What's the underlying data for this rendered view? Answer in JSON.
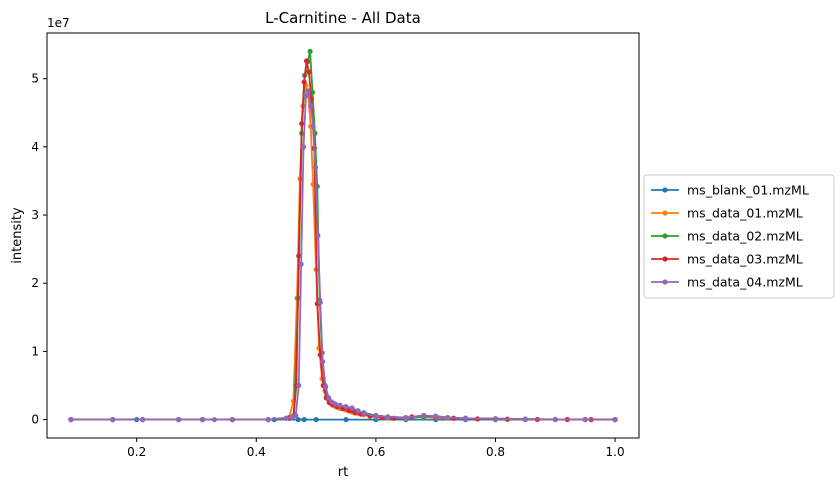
{
  "chart_data": {
    "type": "line",
    "title": "L-Carnitine - All Data",
    "xlabel": "rt",
    "ylabel": "intensity",
    "y_multiplier_label": "1e7",
    "xlim": [
      0.05,
      1.04
    ],
    "ylim": [
      -2700000,
      56700000
    ],
    "x_ticks": [
      0.2,
      0.4,
      0.6,
      0.8,
      1.0
    ],
    "x_tick_labels": [
      "0.2",
      "0.4",
      "0.6",
      "0.8",
      "1.0"
    ],
    "y_ticks": [
      0,
      10000000,
      20000000,
      30000000,
      40000000,
      50000000
    ],
    "y_tick_labels": [
      "0",
      "1",
      "2",
      "3",
      "4",
      "5"
    ],
    "grid": false,
    "legend_position": "outside-right",
    "series": [
      {
        "name": "ms_blank_01.mzML",
        "color": "#1f77b4",
        "x": [
          0.09,
          0.16,
          0.2,
          0.27,
          0.31,
          0.36,
          0.43,
          0.47,
          0.48,
          0.5,
          0.55,
          0.6,
          0.65,
          0.7,
          0.75,
          0.8,
          0.85,
          0.9,
          0.95,
          1.0
        ],
        "y": [
          0,
          0,
          0,
          0,
          0,
          0,
          0,
          0,
          0,
          0,
          0,
          0,
          0,
          0,
          0,
          0,
          0,
          0,
          0,
          0
        ]
      },
      {
        "name": "ms_data_01.mzML",
        "color": "#ff7f0e",
        "x": [
          0.09,
          0.16,
          0.21,
          0.27,
          0.31,
          0.36,
          0.42,
          0.455,
          0.462,
          0.468,
          0.473,
          0.478,
          0.483,
          0.487,
          0.491,
          0.495,
          0.5,
          0.505,
          0.51,
          0.515,
          0.52,
          0.525,
          0.53,
          0.535,
          0.54,
          0.55,
          0.56,
          0.57,
          0.58,
          0.6,
          0.62,
          0.65,
          0.68,
          0.7,
          0.72,
          0.75,
          0.8,
          0.85,
          0.9,
          0.95,
          1.0
        ],
        "y": [
          0,
          0,
          0,
          0,
          0,
          0,
          0,
          300000,
          2700000,
          17800000,
          35300000,
          46000000,
          49000000,
          47500000,
          43000000,
          34500000,
          22000000,
          10500000,
          6000000,
          4200000,
          3000000,
          2400000,
          2000000,
          1800000,
          1600000,
          1400000,
          1100000,
          900000,
          700000,
          400000,
          300000,
          200000,
          400000,
          300000,
          200000,
          150000,
          100000,
          50000,
          20000,
          10000,
          0
        ]
      },
      {
        "name": "ms_data_02.mzML",
        "color": "#2ca02c",
        "x": [
          0.09,
          0.16,
          0.21,
          0.27,
          0.31,
          0.36,
          0.42,
          0.455,
          0.463,
          0.47,
          0.476,
          0.481,
          0.486,
          0.49,
          0.494,
          0.498,
          0.502,
          0.506,
          0.51,
          0.515,
          0.52,
          0.525,
          0.53,
          0.54,
          0.55,
          0.56,
          0.57,
          0.58,
          0.6,
          0.62,
          0.65,
          0.68,
          0.7,
          0.72,
          0.75,
          0.8,
          0.85,
          0.9,
          0.95,
          1.0
        ],
        "y": [
          0,
          0,
          0,
          0,
          0,
          0,
          0,
          300000,
          600000,
          17800000,
          42000000,
          50500000,
          52500000,
          54000000,
          48000000,
          42000000,
          34200000,
          17500000,
          9800000,
          5000000,
          3200000,
          2600000,
          2300000,
          2000000,
          1800000,
          1500000,
          1200000,
          1000000,
          600000,
          400000,
          300000,
          400000,
          500000,
          300000,
          200000,
          150000,
          80000,
          30000,
          10000,
          0
        ]
      },
      {
        "name": "ms_data_03.mzML",
        "color": "#d62728",
        "x": [
          0.09,
          0.16,
          0.21,
          0.27,
          0.31,
          0.36,
          0.42,
          0.455,
          0.462,
          0.467,
          0.471,
          0.476,
          0.48,
          0.484,
          0.488,
          0.492,
          0.497,
          0.502,
          0.507,
          0.512,
          0.517,
          0.522,
          0.527,
          0.535,
          0.545,
          0.555,
          0.565,
          0.575,
          0.59,
          0.61,
          0.63,
          0.66,
          0.68,
          0.7,
          0.73,
          0.77,
          0.82,
          0.87,
          0.92,
          0.96,
          1.0
        ],
        "y": [
          0,
          0,
          0,
          0,
          0,
          0,
          0,
          200000,
          500000,
          5000000,
          24000000,
          43400000,
          49500000,
          52600000,
          51000000,
          47000000,
          39800000,
          17000000,
          9500000,
          5000000,
          3200000,
          2500000,
          2200000,
          1900000,
          1600000,
          1300000,
          1000000,
          800000,
          500000,
          300000,
          200000,
          400000,
          600000,
          400000,
          200000,
          100000,
          50000,
          20000,
          10000,
          0,
          0
        ]
      },
      {
        "name": "ms_data_04.mzML",
        "color": "#9467bd",
        "x": [
          0.09,
          0.16,
          0.21,
          0.27,
          0.31,
          0.33,
          0.36,
          0.42,
          0.45,
          0.46,
          0.466,
          0.471,
          0.475,
          0.479,
          0.483,
          0.487,
          0.491,
          0.495,
          0.499,
          0.503,
          0.507,
          0.511,
          0.516,
          0.521,
          0.526,
          0.532,
          0.54,
          0.55,
          0.56,
          0.57,
          0.58,
          0.6,
          0.62,
          0.65,
          0.68,
          0.7,
          0.72,
          0.75,
          0.8,
          0.85,
          0.9,
          0.95,
          1.0
        ],
        "y": [
          0,
          0,
          0,
          0,
          0,
          0,
          0,
          0,
          200000,
          400000,
          600000,
          5000000,
          22800000,
          40000000,
          47500000,
          48200000,
          46000000,
          43000000,
          37000000,
          27000000,
          17200000,
          8500000,
          4800000,
          3200000,
          2600000,
          2300000,
          2100000,
          1900000,
          1700000,
          1300000,
          900000,
          500000,
          400000,
          300000,
          600000,
          500000,
          300000,
          200000,
          100000,
          50000,
          20000,
          10000,
          0
        ]
      }
    ]
  }
}
